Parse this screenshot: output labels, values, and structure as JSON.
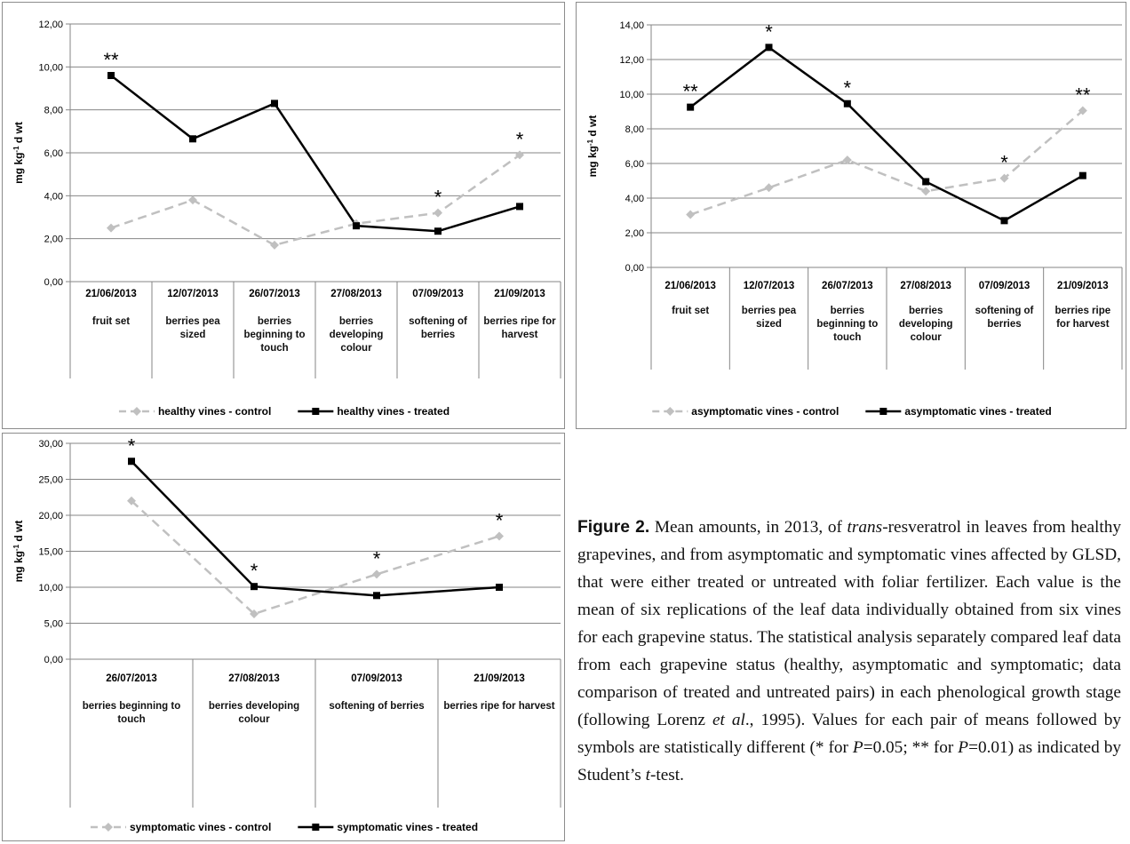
{
  "chart_data": [
    {
      "type": "line",
      "y_label": {
        "main": "mg kg",
        "sup": "-1",
        "rest": " d wt"
      },
      "categories": [
        "21/06/2013",
        "12/07/2013",
        "26/07/2013",
        "27/08/2013",
        "07/09/2013",
        "21/09/2013"
      ],
      "stages": [
        "fruit set",
        "berries pea sized",
        "berries beginning to touch",
        "berries developing colour",
        "softening of berries",
        "berries ripe for harvest"
      ],
      "ylim": [
        0,
        12
      ],
      "yticks": [
        {
          "value": 0,
          "label": "0,00"
        },
        {
          "value": 2,
          "label": "2,00"
        },
        {
          "value": 4,
          "label": "4,00"
        },
        {
          "value": 6,
          "label": "6,00"
        },
        {
          "value": 8,
          "label": "8,00"
        },
        {
          "value": 10,
          "label": "10,00"
        },
        {
          "value": 12,
          "label": "12,00"
        }
      ],
      "grid": true,
      "series": [
        {
          "name": "healthy vines - control",
          "color": "#c0c0c0",
          "dashed": true,
          "marker": "diamond",
          "values": [
            2.5,
            3.8,
            1.7,
            2.7,
            3.2,
            5.9
          ],
          "annotations": [
            null,
            null,
            null,
            null,
            "*",
            "*"
          ]
        },
        {
          "name": "healthy vines - treated",
          "color": "#000000",
          "dashed": false,
          "marker": "square",
          "values": [
            9.6,
            6.65,
            8.3,
            2.6,
            2.35,
            3.5
          ],
          "annotations": [
            "**",
            null,
            null,
            null,
            null,
            null
          ]
        }
      ]
    },
    {
      "type": "line",
      "y_label": {
        "main": "mg kg",
        "sup": "-1",
        "rest": " d wt"
      },
      "categories": [
        "21/06/2013",
        "12/07/2013",
        "26/07/2013",
        "27/08/2013",
        "07/09/2013",
        "21/09/2013"
      ],
      "stages": [
        "fruit set",
        "berries pea sized",
        "berries beginning to touch",
        "berries developing colour",
        "softening of berries",
        "berries ripe for harvest"
      ],
      "ylim": [
        0,
        14
      ],
      "yticks": [
        {
          "value": 0,
          "label": "0,00"
        },
        {
          "value": 2,
          "label": "2,00"
        },
        {
          "value": 4,
          "label": "4,00"
        },
        {
          "value": 6,
          "label": "6,00"
        },
        {
          "value": 8,
          "label": "8,00"
        },
        {
          "value": 10,
          "label": "10,00"
        },
        {
          "value": 12,
          "label": "12,00"
        },
        {
          "value": 14,
          "label": "14,00"
        }
      ],
      "grid": true,
      "series": [
        {
          "name": "asymptomatic vines - control",
          "color": "#c0c0c0",
          "dashed": true,
          "marker": "diamond",
          "values": [
            3.05,
            4.6,
            6.2,
            4.4,
            5.15,
            9.05
          ],
          "annotations": [
            null,
            null,
            null,
            null,
            "*",
            "**"
          ]
        },
        {
          "name": "asymptomatic vines - treated",
          "color": "#000000",
          "dashed": false,
          "marker": "square",
          "values": [
            9.25,
            12.7,
            9.45,
            4.95,
            2.7,
            5.3
          ],
          "annotations": [
            "**",
            "*",
            "*",
            null,
            null,
            null
          ]
        }
      ]
    },
    {
      "type": "line",
      "y_label": {
        "main": "mg kg",
        "sup": "-1",
        "rest": " d wt"
      },
      "categories": [
        "26/07/2013",
        "27/08/2013",
        "07/09/2013",
        "21/09/2013"
      ],
      "stages": [
        "berries beginning to touch",
        "berries developing colour",
        "softening of berries",
        "berries ripe for harvest"
      ],
      "ylim": [
        0,
        30
      ],
      "yticks": [
        {
          "value": 0,
          "label": "0,00"
        },
        {
          "value": 5,
          "label": "5,00"
        },
        {
          "value": 10,
          "label": "10,00"
        },
        {
          "value": 15,
          "label": "15,00"
        },
        {
          "value": 20,
          "label": "20,00"
        },
        {
          "value": 25,
          "label": "25,00"
        },
        {
          "value": 30,
          "label": "30,00"
        }
      ],
      "grid": true,
      "series": [
        {
          "name": "symptomatic vines - control",
          "color": "#c0c0c0",
          "dashed": true,
          "marker": "diamond",
          "values": [
            22.0,
            6.3,
            11.8,
            17.1
          ],
          "annotations": [
            null,
            null,
            "*",
            "*"
          ]
        },
        {
          "name": "symptomatic vines - treated",
          "color": "#000000",
          "dashed": false,
          "marker": "square",
          "values": [
            27.5,
            10.1,
            8.85,
            10.0
          ],
          "annotations": [
            "*",
            "*",
            null,
            null
          ]
        }
      ]
    }
  ],
  "caption": {
    "label": "Figure 2.",
    "segments": [
      {
        "text": " Mean amounts, in 2013, of "
      },
      {
        "text": "trans",
        "italic": true
      },
      {
        "text": "-resveratrol in leaves from healthy grapevines, and from asymptomatic and symptomatic vines affected by GLSD, that were either treated or untreated with foliar fertilizer. Each value is the mean of six replications of the leaf data individually obtained from six vines for each grapevine status. The statistical analysis separately compared leaf data from each grapevine status (healthy, asymptomatic and symptomatic; data comparison of treated and untreated pairs) in each phenological growth stage (following Lorenz "
      },
      {
        "text": "et al",
        "italic": true
      },
      {
        "text": "., 1995). Values for each pair of means followed by symbols are statistically different (* for "
      },
      {
        "text": "P",
        "italic": true
      },
      {
        "text": "=0.05; ** for "
      },
      {
        "text": "P",
        "italic": true
      },
      {
        "text": "=0.01) as indicated by Student’s "
      },
      {
        "text": "t",
        "italic": true
      },
      {
        "text": "-test."
      }
    ]
  }
}
